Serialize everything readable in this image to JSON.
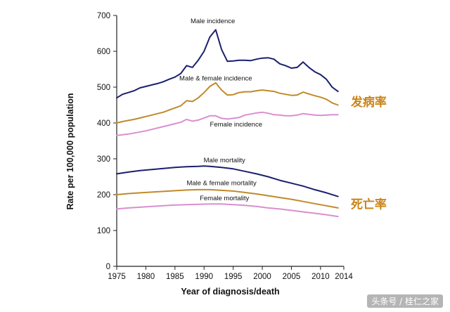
{
  "chart_data": {
    "type": "line",
    "title": "",
    "xlabel": "Year of diagnosis/death",
    "ylabel": "Rate per 100,000 population",
    "xlim": [
      1975,
      2014
    ],
    "ylim": [
      0,
      700
    ],
    "x_ticks": [
      1975,
      1980,
      1985,
      1990,
      1995,
      2000,
      2005,
      2010,
      2014
    ],
    "y_ticks": [
      0,
      100,
      200,
      300,
      400,
      500,
      600,
      700
    ],
    "group_labels": [
      {
        "text": "发病率",
        "color": "#c8841a",
        "anchor_year": 2015.2,
        "anchor_value": 447
      },
      {
        "text": "死亡率",
        "color": "#c8841a",
        "anchor_year": 2015.2,
        "anchor_value": 162
      }
    ],
    "series": [
      {
        "name": "Male incidence",
        "color": "#1a1f6e",
        "label_year": 1991.5,
        "label_value": 678,
        "x": [
          1975,
          1976,
          1977,
          1978,
          1979,
          1980,
          1981,
          1982,
          1983,
          1984,
          1985,
          1986,
          1987,
          1988,
          1989,
          1990,
          1991,
          1992,
          1993,
          1994,
          1995,
          1996,
          1997,
          1998,
          1999,
          2000,
          2001,
          2002,
          2003,
          2004,
          2005,
          2006,
          2007,
          2008,
          2009,
          2010,
          2011,
          2012,
          2013
        ],
        "values": [
          470,
          480,
          485,
          490,
          498,
          502,
          506,
          510,
          515,
          522,
          528,
          538,
          560,
          555,
          575,
          600,
          640,
          660,
          605,
          572,
          573,
          575,
          575,
          574,
          578,
          581,
          582,
          578,
          565,
          560,
          553,
          555,
          570,
          555,
          543,
          535,
          522,
          500,
          488
        ]
      },
      {
        "name": "Male & female incidence",
        "color": "#c08a2a",
        "label_year": 1992,
        "label_value": 519,
        "x": [
          1975,
          1976,
          1977,
          1978,
          1979,
          1980,
          1981,
          1982,
          1983,
          1984,
          1985,
          1986,
          1987,
          1988,
          1989,
          1990,
          1991,
          1992,
          1993,
          1994,
          1995,
          1996,
          1997,
          1998,
          1999,
          2000,
          2001,
          2002,
          2003,
          2004,
          2005,
          2006,
          2007,
          2008,
          2009,
          2010,
          2011,
          2012,
          2013
        ],
        "values": [
          400,
          404,
          407,
          410,
          414,
          418,
          422,
          426,
          430,
          436,
          442,
          448,
          462,
          460,
          470,
          485,
          502,
          512,
          492,
          478,
          479,
          485,
          487,
          487,
          490,
          492,
          490,
          488,
          483,
          480,
          477,
          478,
          486,
          481,
          476,
          472,
          466,
          456,
          450
        ]
      },
      {
        "name": "Female incidence",
        "color": "#d98fd0",
        "label_year": 1995.5,
        "label_value": 390,
        "x": [
          1975,
          1976,
          1977,
          1978,
          1979,
          1980,
          1981,
          1982,
          1983,
          1984,
          1985,
          1986,
          1987,
          1988,
          1989,
          1990,
          1991,
          1992,
          1993,
          1994,
          1995,
          1996,
          1997,
          1998,
          1999,
          2000,
          2001,
          2002,
          2003,
          2004,
          2005,
          2006,
          2007,
          2008,
          2009,
          2010,
          2011,
          2012,
          2013
        ],
        "values": [
          365,
          367,
          369,
          372,
          375,
          378,
          382,
          386,
          390,
          394,
          398,
          402,
          410,
          405,
          408,
          414,
          420,
          420,
          413,
          411,
          413,
          415,
          422,
          425,
          428,
          430,
          427,
          423,
          422,
          420,
          420,
          422,
          426,
          424,
          422,
          421,
          422,
          423,
          423
        ]
      },
      {
        "name": "Male mortality",
        "color": "#1a1f6e",
        "label_year": 1993.5,
        "label_value": 290,
        "x": [
          1975,
          1977,
          1979,
          1981,
          1983,
          1985,
          1987,
          1989,
          1990,
          1991,
          1993,
          1995,
          1997,
          1999,
          2001,
          2003,
          2005,
          2007,
          2009,
          2011,
          2013
        ],
        "values": [
          258,
          263,
          267,
          270,
          273,
          276,
          278,
          279,
          280,
          279,
          276,
          272,
          265,
          258,
          250,
          240,
          232,
          224,
          214,
          205,
          195
        ]
      },
      {
        "name": "Male & female mortality",
        "color": "#c08a2a",
        "label_year": 1993,
        "label_value": 226,
        "x": [
          1975,
          1977,
          1979,
          1981,
          1983,
          1985,
          1987,
          1989,
          1991,
          1993,
          1995,
          1997,
          1999,
          2001,
          2003,
          2005,
          2007,
          2009,
          2011,
          2013
        ],
        "values": [
          200,
          203,
          205,
          207,
          209,
          211,
          213,
          214,
          214,
          212,
          210,
          206,
          202,
          197,
          192,
          187,
          181,
          175,
          169,
          163
        ]
      },
      {
        "name": "Female mortality",
        "color": "#d98fd0",
        "label_year": 1993.5,
        "label_value": 184,
        "x": [
          1975,
          1977,
          1979,
          1981,
          1983,
          1985,
          1987,
          1989,
          1991,
          1993,
          1995,
          1997,
          1999,
          2001,
          2003,
          2005,
          2007,
          2009,
          2011,
          2013
        ],
        "values": [
          160,
          163,
          165,
          167,
          169,
          171,
          172,
          173,
          174,
          174,
          172,
          170,
          167,
          163,
          160,
          156,
          152,
          148,
          144,
          139
        ]
      }
    ]
  },
  "watermark": "头条号 / 桂仁之家"
}
